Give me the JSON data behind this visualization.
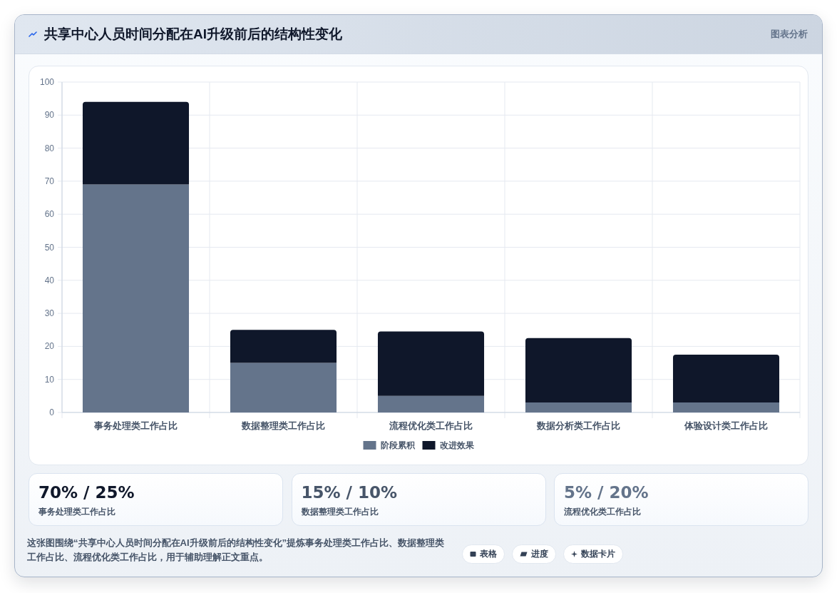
{
  "chart_data": [
    {
      "type": "bar",
      "title": "共享中心人员时间分配在AI升级前后的结构性变化",
      "categories": [
        "事务处理类工作占比",
        "数据整理类工作占比",
        "流程优化类工作占比",
        "数据分析类工作占比",
        "体验设计类工作占比"
      ],
      "series": [
        {
          "name": "阶段累积",
          "color": "#64748b",
          "values": [
            69,
            15,
            5,
            3,
            3
          ]
        },
        {
          "name": "改进效果",
          "color": "#0f172a",
          "values": [
            25,
            10,
            19.5,
            19.5,
            14.5
          ]
        }
      ],
      "stacked": true,
      "ylim": [
        0,
        100
      ],
      "yticks": [
        0,
        10,
        20,
        30,
        40,
        50,
        60,
        70,
        80,
        90,
        100
      ],
      "grid": true,
      "legend": "bottom",
      "annotations": [
        "图表分析",
        "这张图围绕“共享中心人员时间分配在AI升级前后的结构性变化”提炼事务处理类工作占比、数据整理类工作占比、流程优化类工作占比，用于辅助理解正文重点。",
        "表格",
        "进度",
        "数据卡片"
      ]
    },
    {
      "type": "other",
      "title": "70% / 25%",
      "subtitle": "事务处理类工作占比"
    },
    {
      "type": "other",
      "title": "15% / 10%",
      "subtitle": "数据整理类工作占比"
    },
    {
      "type": "other",
      "title": "5% / 20%",
      "subtitle": "流程优化类工作占比"
    }
  ]
}
